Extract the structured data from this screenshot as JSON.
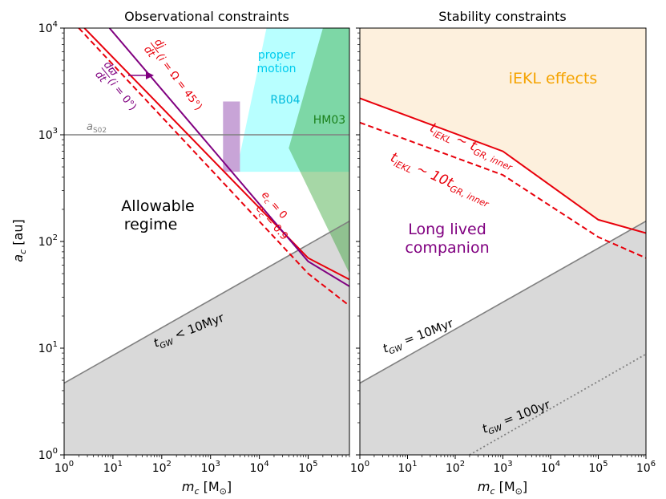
{
  "figure": {
    "ylabel_main": "a",
    "ylabel_sub": "c",
    "ylabel_unit": " [au]",
    "xlabel_main": "m",
    "xlabel_sub": "c",
    "xlabel_unit": " [M",
    "xlabel_sun": "⊙",
    "xlabel_close": "]"
  },
  "chart_data": [
    {
      "type": "line",
      "title": "Observational constraints",
      "x_scale": "log",
      "y_scale": "log",
      "xlim": [
        1,
        700000
      ],
      "ylim": [
        1,
        10000
      ],
      "xticks": [
        {
          "value": 1,
          "mant": "10",
          "exp": "0"
        },
        {
          "value": 10,
          "mant": "10",
          "exp": "1"
        },
        {
          "value": 100,
          "mant": "10",
          "exp": "2"
        },
        {
          "value": 1000,
          "mant": "10",
          "exp": "3"
        },
        {
          "value": 10000,
          "mant": "10",
          "exp": "4"
        },
        {
          "value": 100000,
          "mant": "10",
          "exp": "5"
        }
      ],
      "yticks": [
        {
          "value": 1,
          "mant": "10",
          "exp": "0"
        },
        {
          "value": 10,
          "mant": "10",
          "exp": "1"
        },
        {
          "value": 100,
          "mant": "10",
          "exp": "2"
        },
        {
          "value": 1000,
          "mant": "10",
          "exp": "3"
        },
        {
          "value": 10000,
          "mant": "10",
          "exp": "4"
        }
      ],
      "series": [
        {
          "style": "solid",
          "color": "#e8000b",
          "points": [
            [
              2.6,
              10000
            ],
            [
              100000,
              70
            ],
            [
              700000,
              44
            ]
          ]
        },
        {
          "style": "dashed",
          "color": "#e8000b",
          "points": [
            [
              2.0,
              10000
            ],
            [
              100000,
              50
            ],
            [
              700000,
              25
            ]
          ]
        },
        {
          "style": "solid",
          "color": "#800080",
          "points": [
            [
              8.5,
              10000
            ],
            [
              100000,
              65
            ],
            [
              700000,
              38
            ]
          ]
        }
      ],
      "regions": [
        {
          "name": "proper-motion-region",
          "color": "#00ffff",
          "opacity": 0.28,
          "points": [
            [
              4000,
              450
            ],
            [
              4000,
              650
            ],
            [
              14000,
              10000
            ],
            [
              700000,
              10000
            ],
            [
              700000,
              450
            ]
          ]
        },
        {
          "name": "hm03-region",
          "color": "#2ca02c",
          "opacity": 0.42,
          "points": [
            [
              40000,
              750
            ],
            [
              200000,
              10000
            ],
            [
              700000,
              10000
            ],
            [
              700000,
              50
            ]
          ]
        },
        {
          "name": "rb04-box",
          "color": "#9b59b6",
          "opacity": 0.55,
          "points": [
            [
              1800,
              450
            ],
            [
              1800,
              2050
            ],
            [
              4000,
              2050
            ],
            [
              4000,
              450
            ]
          ]
        }
      ],
      "gw_bound": {
        "points": [
          [
            1,
            4.7
          ],
          [
            700000,
            155
          ]
        ],
        "fill": "#d9d9d9",
        "line_color": "#808080"
      },
      "a_S02": {
        "value": 1000,
        "color": "#808080"
      },
      "annotations": {
        "a_s02_main": "a",
        "a_s02_sub": "S02",
        "proper_motion_1": "proper",
        "proper_motion_2": "motion",
        "rb04": "RB04",
        "hm03": "HM03",
        "allowable_1": "Allowable",
        "allowable_2": "regime",
        "dj_num": "dj",
        "dj_den": "dt",
        "dj_args": "(i",
        "dj_rest": " = Ω",
        "dj_end": " = 45°)",
        "dw_num": "dϖ",
        "dw_den": "dt",
        "dw_args": "(i",
        "dw_end": " = 0°)",
        "ec0_main": "e",
        "ec0_sub": "c",
        "ec0_val": " = 0",
        "ec09_main": "e",
        "ec09_sub": "c",
        "ec09_val": " = 0.9",
        "tgw_main": "t",
        "tgw_sub": "GW",
        "tgw_val": " < 10Myr"
      }
    },
    {
      "type": "line",
      "title": "Stability constraints",
      "x_scale": "log",
      "y_scale": "log",
      "xlim": [
        1,
        1000000
      ],
      "ylim": [
        1,
        10000
      ],
      "xticks": [
        {
          "value": 1,
          "mant": "10",
          "exp": "0"
        },
        {
          "value": 10,
          "mant": "10",
          "exp": "1"
        },
        {
          "value": 100,
          "mant": "10",
          "exp": "2"
        },
        {
          "value": 1000,
          "mant": "10",
          "exp": "3"
        },
        {
          "value": 10000,
          "mant": "10",
          "exp": "4"
        },
        {
          "value": 100000,
          "mant": "10",
          "exp": "5"
        },
        {
          "value": 1000000,
          "mant": "10",
          "exp": "6"
        }
      ],
      "series": [
        {
          "style": "solid",
          "color": "#e8000b",
          "points": [
            [
              1,
              2200
            ],
            [
              1000,
              700
            ],
            [
              100000,
              160
            ],
            [
              1000000,
              120
            ]
          ]
        },
        {
          "style": "dashed",
          "color": "#e8000b",
          "points": [
            [
              1,
              1300
            ],
            [
              1000,
              420
            ],
            [
              100000,
              110
            ],
            [
              1000000,
              70
            ]
          ]
        },
        {
          "style": "dotted",
          "color": "#808080",
          "points": [
            [
              200,
              1
            ],
            [
              1000000,
              8.8
            ]
          ]
        }
      ],
      "ekl_region": {
        "color": "#fdf0dd",
        "top": 10000
      },
      "gw_bound": {
        "points": [
          [
            1,
            4.7
          ],
          [
            1000000,
            155
          ]
        ],
        "fill": "#d9d9d9",
        "line_color": "#808080"
      },
      "annotations": {
        "iekl": "iEKL effects",
        "t1_main": "t",
        "t1_sub": "iEKL",
        "t1_mid": " ~ t",
        "t1_sub2": "GR, inner",
        "t2_main": "t",
        "t2_sub": "iEKL",
        "t2_mid": " ~ 10t",
        "t2_sub2": "GR, inner",
        "long_1": "Long lived",
        "long_2": "companion",
        "tgw1_main": "t",
        "tgw1_sub": "GW",
        "tgw1_val": " = 10Myr",
        "tgw2_main": "t",
        "tgw2_sub": "GW",
        "tgw2_val": " = 100yr"
      }
    }
  ]
}
